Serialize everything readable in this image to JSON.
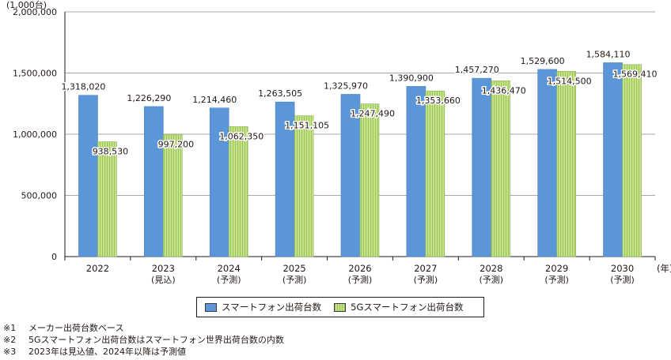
{
  "chart_data": {
    "type": "bar",
    "unit_label": "(1,000台)",
    "year_suffix": "(年)",
    "categories": [
      {
        "year": "2022",
        "sub": ""
      },
      {
        "year": "2023",
        "sub": "(見込)"
      },
      {
        "year": "2024",
        "sub": "(予測)"
      },
      {
        "year": "2025",
        "sub": "(予測)"
      },
      {
        "year": "2026",
        "sub": "(予測)"
      },
      {
        "year": "2027",
        "sub": "(予測)"
      },
      {
        "year": "2028",
        "sub": "(予測)"
      },
      {
        "year": "2029",
        "sub": "(予測)"
      },
      {
        "year": "2030",
        "sub": "(予測)"
      }
    ],
    "series": [
      {
        "name": "スマートフォン出荷台数",
        "color": "#5b97d8",
        "values": [
          1318020,
          1226290,
          1214460,
          1263505,
          1325970,
          1390900,
          1457270,
          1529600,
          1584110
        ]
      },
      {
        "name": "5Gスマートフォン出荷台数",
        "color": "#c5e28a",
        "values": [
          938530,
          997200,
          1062350,
          1151105,
          1247490,
          1353660,
          1436470,
          1514500,
          1569410
        ]
      }
    ],
    "ylim": [
      0,
      2000000
    ],
    "yticks": [
      0,
      500000,
      1000000,
      1500000,
      2000000
    ]
  },
  "legend": {
    "series1": "スマートフォン出荷台数",
    "series2": "5Gスマートフォン出荷台数"
  },
  "notes": [
    {
      "mark": "※1",
      "text": "メーカー出荷台数ベース"
    },
    {
      "mark": "※2",
      "text": "5Gスマートフォン出荷台数はスマートフォン世界出荷台数の内数"
    },
    {
      "mark": "※3",
      "text": "2023年は見込値、2024年以降は予測値"
    }
  ]
}
